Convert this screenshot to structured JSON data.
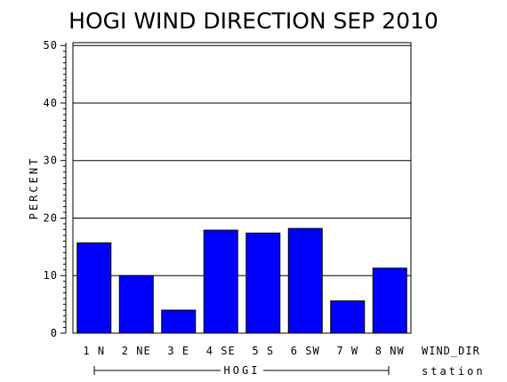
{
  "chart_data": {
    "type": "bar",
    "title": "HOGI WIND DIRECTION SEP 2010",
    "ylabel": "PERCENT",
    "xlabel": "WIND_DIR",
    "group_label": "HOGI",
    "group_axis_label": "station",
    "categories": [
      "1 N",
      "2 NE",
      "3 E",
      "4 SE",
      "5 S",
      "6 SW",
      "7 W",
      "8 NW"
    ],
    "values": [
      15.7,
      10.0,
      4.0,
      17.9,
      17.4,
      18.2,
      5.6,
      11.3
    ],
    "ylim": [
      0,
      50
    ],
    "yticks": [
      0,
      10,
      20,
      30,
      40,
      50
    ],
    "ytick_labels": [
      "0",
      "10",
      "20",
      "30",
      "40",
      "50"
    ],
    "grid": true,
    "bar_color": "#0000ff"
  }
}
